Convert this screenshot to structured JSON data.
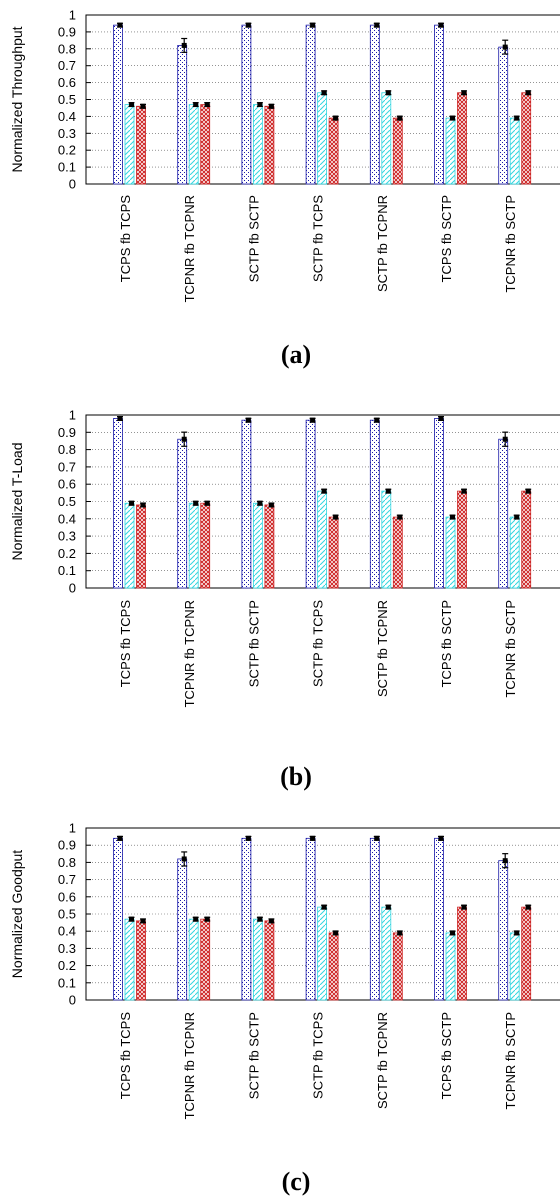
{
  "chart_data": [
    {
      "type": "bar",
      "panel_label": "(a)",
      "ylabel": "Normalized Throughput",
      "ylim": [
        0,
        1
      ],
      "yticks": [
        "0",
        "0.1",
        "0.2",
        "0.3",
        "0.4",
        "0.5",
        "0.6",
        "0.7",
        "0.8",
        "0.9",
        "1"
      ],
      "grid": "horizontal dotted",
      "categories": [
        "TCPS fb TCPS",
        "TCPNR fb TCPNR",
        "SCTP fb SCTP",
        "SCTP fb TCPS",
        "SCTP fb TCPNR",
        "TCPS fb SCTP",
        "TCPNR fb SCTP"
      ],
      "series": [
        {
          "values": [
            0.94,
            0.82,
            0.94,
            0.94,
            0.94,
            0.94,
            0.81
          ],
          "errors": [
            0.005,
            0.035,
            0.005,
            0.005,
            0.005,
            0.005,
            0.035
          ],
          "color": "#1a1aa8"
        },
        {
          "values": [
            0.47,
            0.47,
            0.47,
            0.54,
            0.54,
            0.39,
            0.39
          ],
          "errors": [
            0.005,
            0.005,
            0.005,
            0.005,
            0.005,
            0.005,
            0.005
          ],
          "color": "#33d6e0"
        },
        {
          "values": [
            0.46,
            0.47,
            0.46,
            0.39,
            0.39,
            0.54,
            0.54
          ],
          "errors": [
            0.005,
            0.005,
            0.005,
            0.005,
            0.005,
            0.005,
            0.005
          ],
          "color": "#cc2222"
        }
      ]
    },
    {
      "type": "bar",
      "panel_label": "(b)",
      "ylabel": "Normalized T-Load",
      "ylim": [
        0,
        1
      ],
      "yticks": [
        "0",
        "0.1",
        "0.2",
        "0.3",
        "0.4",
        "0.5",
        "0.6",
        "0.7",
        "0.8",
        "0.9",
        "1"
      ],
      "grid": "horizontal dotted",
      "categories": [
        "TCPS fb TCPS",
        "TCPNR fb TCPNR",
        "SCTP fb SCTP",
        "SCTP fb TCPS",
        "SCTP fb TCPNR",
        "TCPS fb SCTP",
        "TCPNR fb SCTP"
      ],
      "series": [
        {
          "values": [
            0.98,
            0.86,
            0.97,
            0.97,
            0.97,
            0.98,
            0.86
          ],
          "errors": [
            0.005,
            0.035,
            0.005,
            0.005,
            0.005,
            0.005,
            0.035
          ],
          "color": "#1a1aa8"
        },
        {
          "values": [
            0.49,
            0.49,
            0.49,
            0.56,
            0.56,
            0.41,
            0.41
          ],
          "errors": [
            0.005,
            0.005,
            0.005,
            0.005,
            0.005,
            0.005,
            0.005
          ],
          "color": "#33d6e0"
        },
        {
          "values": [
            0.48,
            0.49,
            0.48,
            0.41,
            0.41,
            0.56,
            0.56
          ],
          "errors": [
            0.005,
            0.005,
            0.005,
            0.005,
            0.005,
            0.005,
            0.005
          ],
          "color": "#cc2222"
        }
      ]
    },
    {
      "type": "bar",
      "panel_label": "(c)",
      "ylabel": "Normalized Goodput",
      "ylim": [
        0,
        1
      ],
      "yticks": [
        "0",
        "0.1",
        "0.2",
        "0.3",
        "0.4",
        "0.5",
        "0.6",
        "0.7",
        "0.8",
        "0.9",
        "1"
      ],
      "grid": "horizontal dotted",
      "categories": [
        "TCPS fb TCPS",
        "TCPNR fb TCPNR",
        "SCTP fb SCTP",
        "SCTP fb TCPS",
        "SCTP fb TCPNR",
        "TCPS fb SCTP",
        "TCPNR fb SCTP"
      ],
      "series": [
        {
          "values": [
            0.94,
            0.82,
            0.94,
            0.94,
            0.94,
            0.94,
            0.81
          ],
          "errors": [
            0.005,
            0.035,
            0.005,
            0.005,
            0.005,
            0.005,
            0.035
          ],
          "color": "#1a1aa8"
        },
        {
          "values": [
            0.47,
            0.47,
            0.47,
            0.54,
            0.54,
            0.39,
            0.39
          ],
          "errors": [
            0.005,
            0.005,
            0.005,
            0.005,
            0.005,
            0.005,
            0.005
          ],
          "color": "#33d6e0"
        },
        {
          "values": [
            0.46,
            0.47,
            0.46,
            0.39,
            0.39,
            0.54,
            0.54
          ],
          "errors": [
            0.005,
            0.005,
            0.005,
            0.005,
            0.005,
            0.005,
            0.005
          ],
          "color": "#cc2222"
        }
      ]
    }
  ]
}
